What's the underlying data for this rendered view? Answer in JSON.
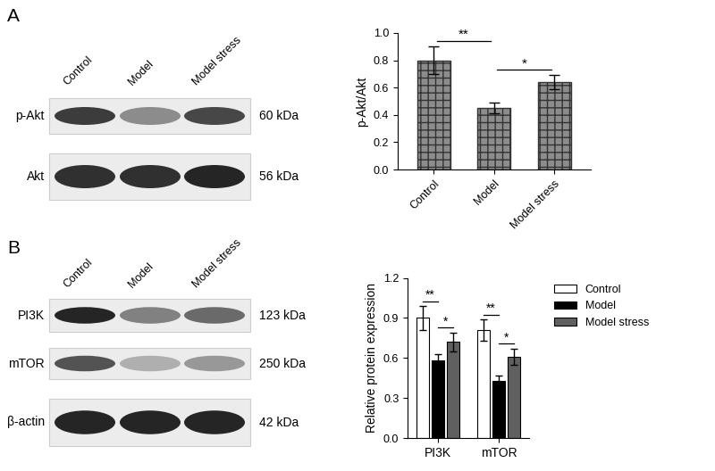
{
  "panel_labels": [
    "A",
    "B"
  ],
  "blots": [
    {
      "lanes": [
        "Control",
        "Model",
        "Model stress"
      ],
      "rows": [
        {
          "name": "p-Akt",
          "size": "60 kDa",
          "intensity": [
            0.85,
            0.5,
            0.8
          ]
        },
        {
          "name": "Akt",
          "size": "56 kDa",
          "intensity": [
            0.9,
            0.9,
            0.95
          ]
        }
      ]
    },
    {
      "lanes": [
        "Control",
        "Model",
        "Model stress"
      ],
      "rows": [
        {
          "name": "PI3K",
          "size": "123 kDa",
          "intensity": [
            0.95,
            0.55,
            0.65
          ]
        },
        {
          "name": "mTOR",
          "size": "250 kDa",
          "intensity": [
            0.75,
            0.35,
            0.45
          ]
        },
        {
          "name": "β-actin",
          "size": "42 kDa",
          "intensity": [
            0.95,
            0.95,
            0.95
          ]
        }
      ]
    }
  ],
  "chart_data": [
    {
      "type": "bar",
      "categories": [
        "Control",
        "Model",
        "Model stress"
      ],
      "values": [
        0.8,
        0.45,
        0.64
      ],
      "errors": [
        0.1,
        0.04,
        0.05
      ],
      "color": "#8c8c8c",
      "y_label": "p-Akt/Akt",
      "ylim": [
        0.0,
        1.0
      ],
      "yticks": [
        0.0,
        0.2,
        0.4,
        0.6,
        0.8,
        1.0
      ],
      "significance": [
        {
          "pair": [
            0,
            1
          ],
          "label": "**"
        },
        {
          "pair": [
            1,
            2
          ],
          "label": "*"
        }
      ]
    },
    {
      "type": "bar",
      "categories": [
        "PI3K",
        "mTOR"
      ],
      "series": [
        {
          "name": "Control",
          "color": "#ffffff",
          "values": [
            0.9,
            0.81
          ],
          "errors": [
            0.09,
            0.08
          ]
        },
        {
          "name": "Model",
          "color": "#000000",
          "values": [
            0.58,
            0.43
          ],
          "errors": [
            0.05,
            0.04
          ]
        },
        {
          "name": "Model stress",
          "color": "#606060",
          "values": [
            0.72,
            0.61
          ],
          "errors": [
            0.07,
            0.06
          ]
        }
      ],
      "y_label": "Relative protein expression",
      "ylim": [
        0.0,
        1.2
      ],
      "yticks": [
        0.0,
        0.3,
        0.6,
        0.9,
        1.2
      ],
      "legend": "upper left",
      "significance": [
        {
          "category": 0,
          "pair": [
            0,
            1
          ],
          "label": "**"
        },
        {
          "category": 0,
          "pair": [
            1,
            2
          ],
          "label": "*"
        },
        {
          "category": 1,
          "pair": [
            0,
            1
          ],
          "label": "**"
        },
        {
          "category": 1,
          "pair": [
            1,
            2
          ],
          "label": "*"
        }
      ]
    }
  ]
}
